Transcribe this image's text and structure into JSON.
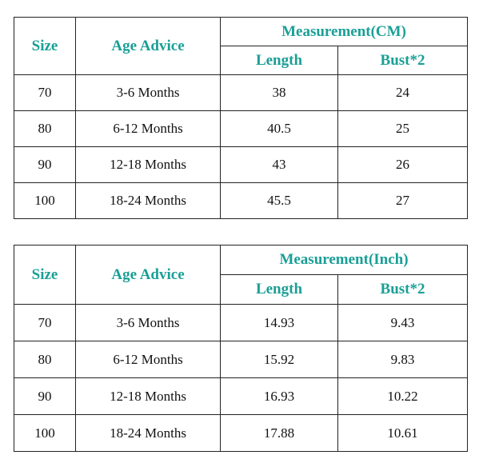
{
  "tables": [
    {
      "headers": {
        "size": "Size",
        "age": "Age Advice",
        "measurement": "Measurement(CM)",
        "length": "Length",
        "bust": "Bust*2"
      },
      "rows": [
        {
          "size": "70",
          "age": "3-6 Months",
          "length": "38",
          "bust": "24"
        },
        {
          "size": "80",
          "age": "6-12 Months",
          "length": "40.5",
          "bust": "25"
        },
        {
          "size": "90",
          "age": "12-18 Months",
          "length": "43",
          "bust": "26"
        },
        {
          "size": "100",
          "age": "18-24 Months",
          "length": "45.5",
          "bust": "27"
        }
      ]
    },
    {
      "headers": {
        "size": "Size",
        "age": "Age Advice",
        "measurement": "Measurement(Inch)",
        "length": "Length",
        "bust": "Bust*2"
      },
      "rows": [
        {
          "size": "70",
          "age": "3-6 Months",
          "length": "14.93",
          "bust": "9.43"
        },
        {
          "size": "80",
          "age": "6-12 Months",
          "length": "15.92",
          "bust": "9.83"
        },
        {
          "size": "90",
          "age": "12-18 Months",
          "length": "16.93",
          "bust": "10.22"
        },
        {
          "size": "100",
          "age": "18-24 Months",
          "length": "17.88",
          "bust": "10.61"
        }
      ]
    }
  ],
  "colors": {
    "header_text": "#1a9f96",
    "border": "#222222",
    "body_text": "#111111"
  }
}
